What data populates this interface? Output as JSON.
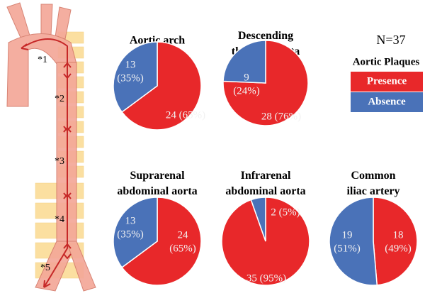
{
  "chart_data": [
    {
      "type": "pie",
      "title": "Aortic arch",
      "categories": [
        "Presence",
        "Absence"
      ],
      "colors": [
        "#e8282a",
        "#4a72b8"
      ],
      "values": [
        24,
        13
      ],
      "value_labels": [
        "24 (65%)",
        "13 (35%)"
      ]
    },
    {
      "type": "pie",
      "title": "Descending thoracic aorta",
      "categories": [
        "Presence",
        "Absence"
      ],
      "colors": [
        "#e8282a",
        "#4a72b8"
      ],
      "values": [
        28,
        9
      ],
      "value_labels": [
        "28 (76%)",
        "9 (24%)"
      ]
    },
    {
      "type": "pie",
      "title": "Suprarenal abdominal aorta",
      "categories": [
        "Presence",
        "Absence"
      ],
      "colors": [
        "#e8282a",
        "#4a72b8"
      ],
      "values": [
        24,
        13
      ],
      "value_labels": [
        "24 (65%)",
        "13 (35%)"
      ]
    },
    {
      "type": "pie",
      "title": "Infrarenal abdominal aorta",
      "categories": [
        "Presence",
        "Absence"
      ],
      "colors": [
        "#e8282a",
        "#4a72b8"
      ],
      "values": [
        35,
        2
      ],
      "value_labels": [
        "35 (95%)",
        "2 (5%)"
      ]
    },
    {
      "type": "pie",
      "title": "Common iliac artery",
      "categories": [
        "Presence",
        "Absence"
      ],
      "colors": [
        "#e8282a",
        "#4a72b8"
      ],
      "values": [
        18,
        19
      ],
      "value_labels": [
        "18 (49%)",
        "19 (51%)"
      ]
    }
  ],
  "n_label": "N=37",
  "legend": {
    "title": "Aortic Plaques",
    "items": [
      {
        "name": "Presence",
        "color": "#e8282a"
      },
      {
        "name": "Absence",
        "color": "#4a72b8"
      }
    ]
  },
  "diagram": {
    "labels": [
      "*1",
      "*2",
      "*3",
      "*4",
      "*5"
    ]
  }
}
